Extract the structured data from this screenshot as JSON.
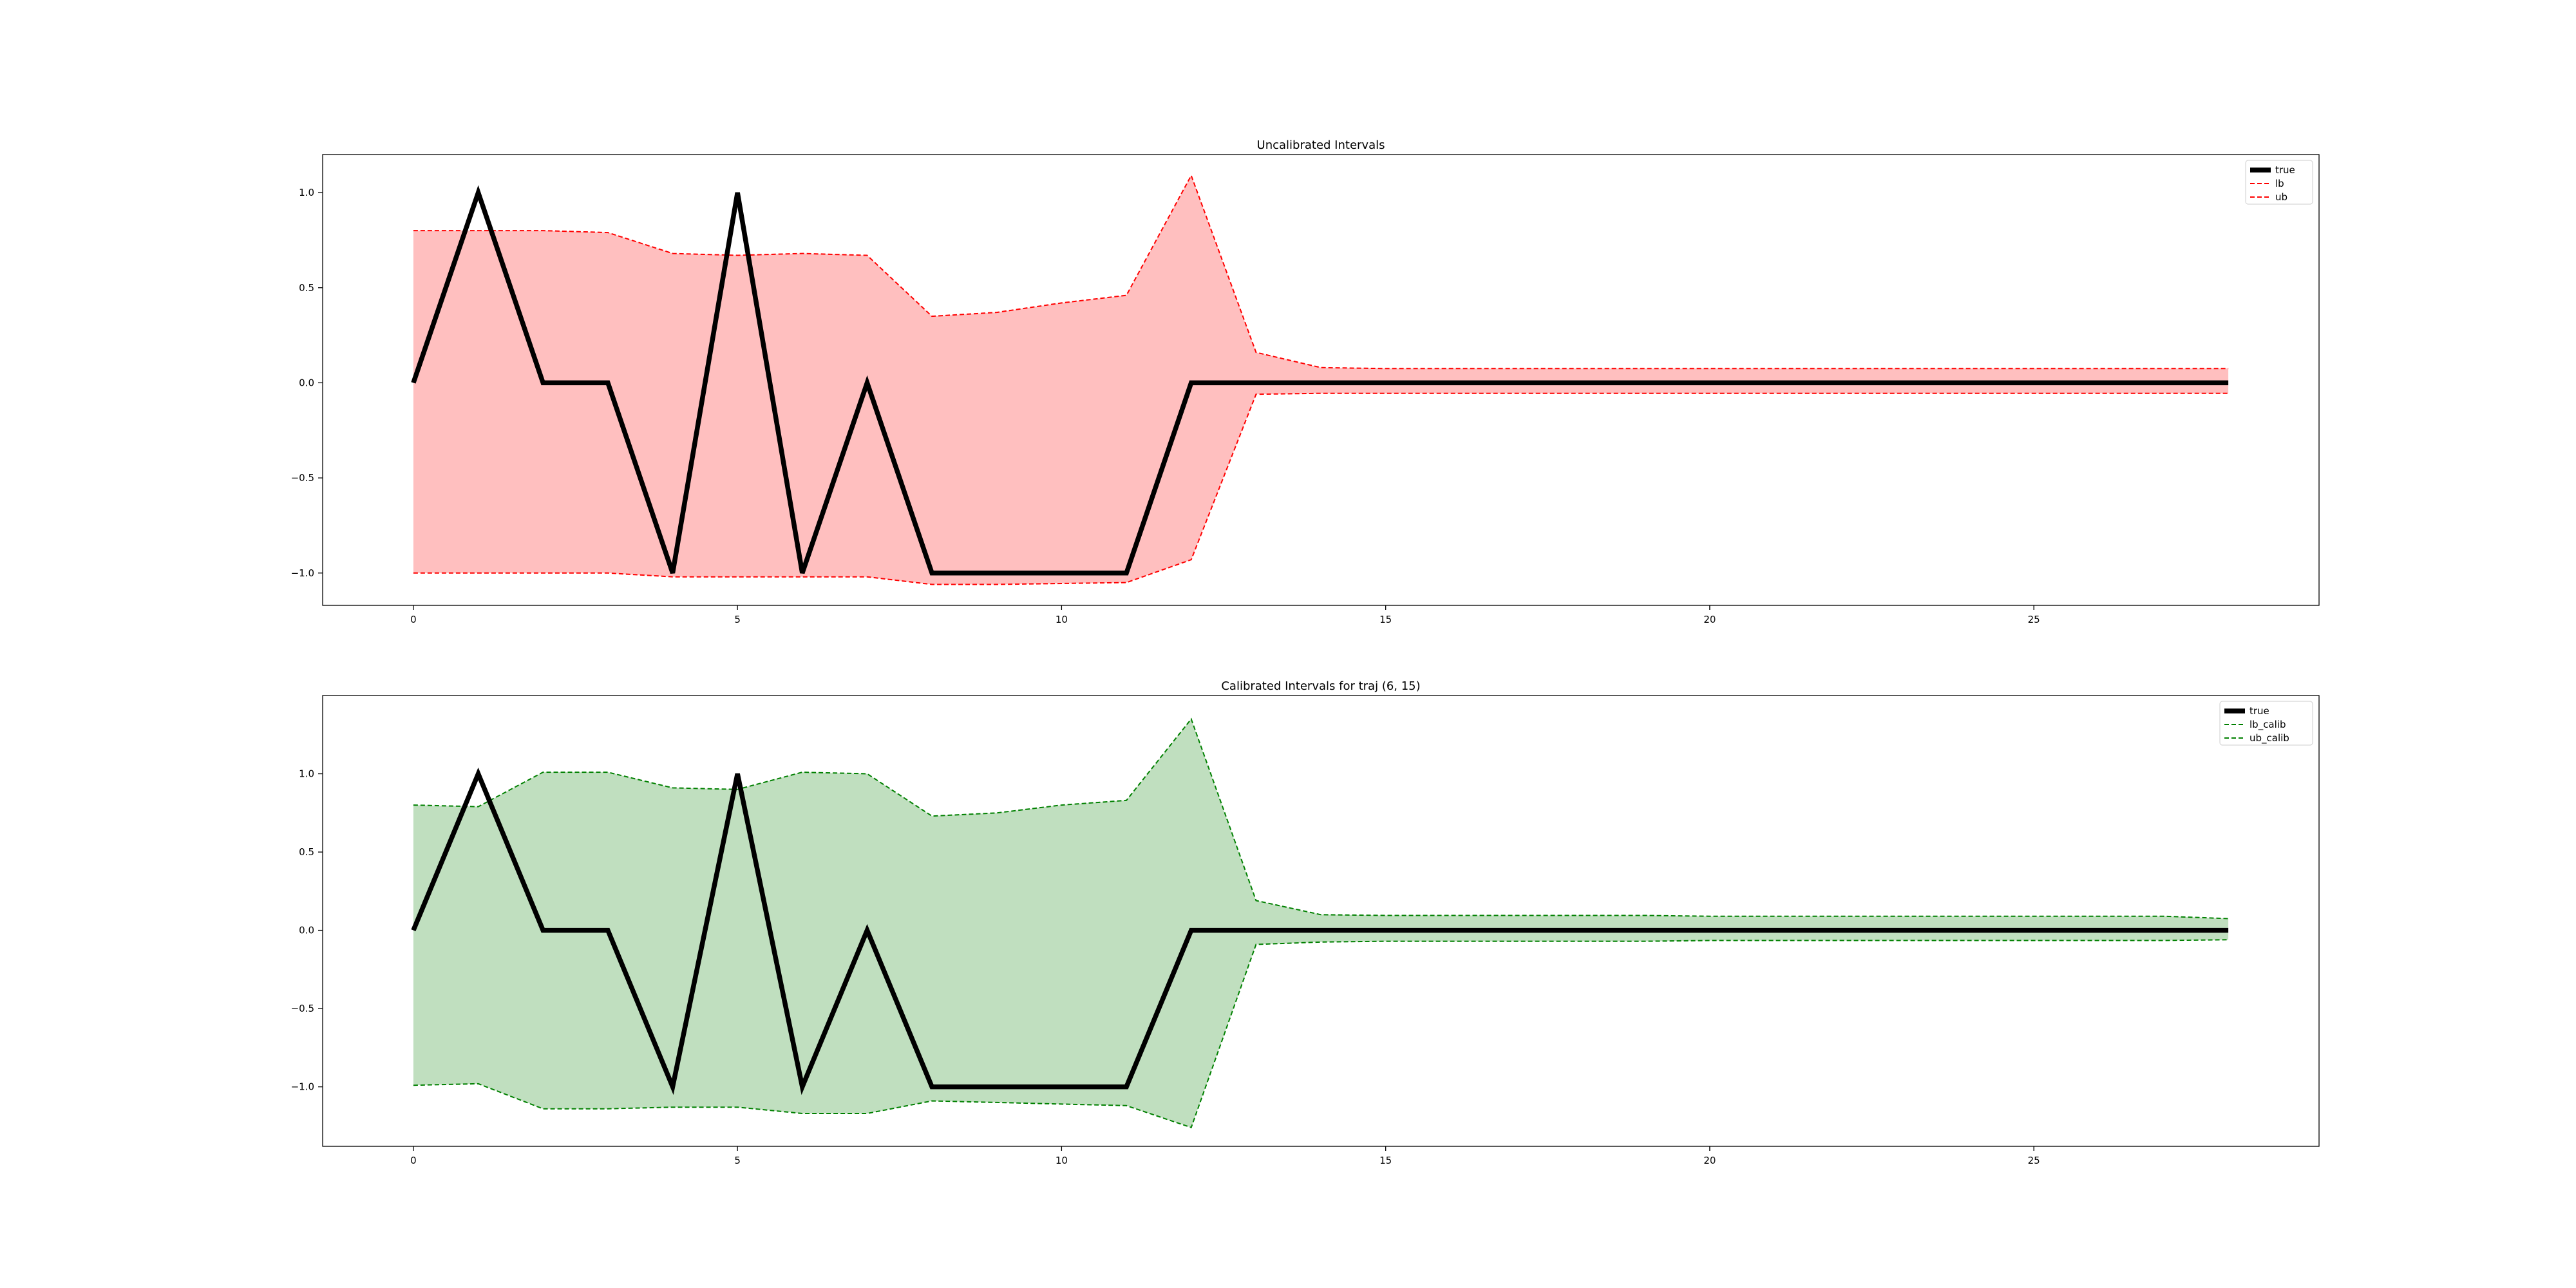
{
  "chart_data": [
    {
      "type": "line",
      "title": "Uncalibrated Intervals",
      "xlabel": "",
      "ylabel": "",
      "xlim": [
        -1.4,
        29.4
      ],
      "ylim": [
        -1.17,
        1.2
      ],
      "xticks": [
        0,
        5,
        10,
        15,
        20,
        25
      ],
      "yticks": [
        -1.0,
        -0.5,
        0.0,
        0.5,
        1.0
      ],
      "ytick_labels": [
        "−1.0",
        "−0.5",
        "0.0",
        "0.5",
        "1.0"
      ],
      "grid": false,
      "legend_position": "top-right",
      "fill_color": "#ffbfbf",
      "x": [
        0,
        1,
        2,
        3,
        4,
        5,
        6,
        7,
        8,
        9,
        10,
        11,
        12,
        13,
        14,
        15,
        16,
        17,
        18,
        19,
        20,
        21,
        22,
        23,
        24,
        25,
        26,
        27,
        28
      ],
      "series": [
        {
          "name": "true",
          "style": "solid",
          "color": "#000000",
          "values": [
            0,
            1,
            0,
            0,
            -1,
            1,
            -1,
            0,
            -1,
            -1,
            -1,
            -1,
            0,
            0,
            0,
            0,
            0,
            0,
            0,
            0,
            0,
            0,
            0,
            0,
            0,
            0,
            0,
            0,
            0
          ]
        },
        {
          "name": "lb",
          "style": "dashed",
          "color": "#ff0000",
          "values": [
            -1.0,
            -1.0,
            -1.0,
            -1.0,
            -1.02,
            -1.02,
            -1.02,
            -1.02,
            -1.06,
            -1.06,
            -1.055,
            -1.05,
            -0.93,
            -0.06,
            -0.055,
            -0.055,
            -0.055,
            -0.055,
            -0.055,
            -0.055,
            -0.055,
            -0.055,
            -0.055,
            -0.055,
            -0.055,
            -0.055,
            -0.055,
            -0.055,
            -0.055
          ]
        },
        {
          "name": "ub",
          "style": "dashed",
          "color": "#ff0000",
          "values": [
            0.8,
            0.8,
            0.8,
            0.79,
            0.68,
            0.67,
            0.68,
            0.67,
            0.35,
            0.37,
            0.42,
            0.46,
            1.09,
            0.16,
            0.08,
            0.075,
            0.075,
            0.075,
            0.075,
            0.075,
            0.075,
            0.075,
            0.075,
            0.075,
            0.075,
            0.075,
            0.075,
            0.075,
            0.075
          ]
        }
      ]
    },
    {
      "type": "line",
      "title": "Calibrated Intervals for traj (6, 15)",
      "xlabel": "",
      "ylabel": "",
      "xlim": [
        -1.4,
        29.4
      ],
      "ylim": [
        -1.38,
        1.5
      ],
      "xticks": [
        0,
        5,
        10,
        15,
        20,
        25
      ],
      "yticks": [
        -1.0,
        -0.5,
        0.0,
        0.5,
        1.0
      ],
      "ytick_labels": [
        "−1.0",
        "−0.5",
        "0.0",
        "0.5",
        "1.0"
      ],
      "grid": false,
      "legend_position": "top-right",
      "fill_color": "#c0dfbf",
      "x": [
        0,
        1,
        2,
        3,
        4,
        5,
        6,
        7,
        8,
        9,
        10,
        11,
        12,
        13,
        14,
        15,
        16,
        17,
        18,
        19,
        20,
        21,
        22,
        23,
        24,
        25,
        26,
        27,
        28
      ],
      "series": [
        {
          "name": "true",
          "style": "solid",
          "color": "#000000",
          "values": [
            0,
            1,
            0,
            0,
            -1,
            1,
            -1,
            0,
            -1,
            -1,
            -1,
            -1,
            0,
            0,
            0,
            0,
            0,
            0,
            0,
            0,
            0,
            0,
            0,
            0,
            0,
            0,
            0,
            0,
            0
          ]
        },
        {
          "name": "lb_calib",
          "style": "dashed",
          "color": "#008000",
          "values": [
            -0.99,
            -0.98,
            -1.14,
            -1.14,
            -1.13,
            -1.13,
            -1.17,
            -1.17,
            -1.09,
            -1.1,
            -1.11,
            -1.12,
            -1.26,
            -0.09,
            -0.075,
            -0.07,
            -0.07,
            -0.07,
            -0.07,
            -0.07,
            -0.065,
            -0.065,
            -0.065,
            -0.065,
            -0.065,
            -0.065,
            -0.065,
            -0.065,
            -0.06
          ]
        },
        {
          "name": "ub_calib",
          "style": "dashed",
          "color": "#008000",
          "values": [
            0.8,
            0.79,
            1.01,
            1.01,
            0.91,
            0.9,
            1.01,
            1.0,
            0.73,
            0.75,
            0.8,
            0.83,
            1.35,
            0.19,
            0.1,
            0.095,
            0.095,
            0.095,
            0.095,
            0.095,
            0.09,
            0.09,
            0.09,
            0.09,
            0.09,
            0.09,
            0.09,
            0.09,
            0.075
          ]
        }
      ]
    }
  ]
}
